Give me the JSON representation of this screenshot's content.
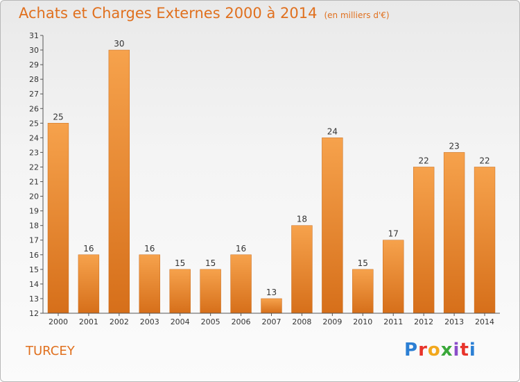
{
  "header": {
    "title": "Achats et Charges Externes 2000 à 2014",
    "subtitle": "(en milliers d'€)"
  },
  "footer": {
    "place": "TURCEY",
    "logo_text": "Proxiti",
    "logo_colors": [
      "#2b7fd4",
      "#e8332a",
      "#f2a81d",
      "#3aa83a",
      "#8a4ec9",
      "#e8332a",
      "#2b7fd4"
    ]
  },
  "colors": {
    "bar_light": "#f6a24c",
    "bar_dark": "#d66f1a",
    "axis": "#555555",
    "title": "#e0701e"
  },
  "chart_data": {
    "type": "bar",
    "title": "Achats et Charges Externes 2000 à 2014",
    "subtitle": "(en milliers d'€)",
    "xlabel": "",
    "ylabel": "",
    "categories": [
      "2000",
      "2001",
      "2002",
      "2003",
      "2004",
      "2005",
      "2006",
      "2007",
      "2008",
      "2009",
      "2010",
      "2011",
      "2012",
      "2013",
      "2014"
    ],
    "values": [
      25,
      16,
      30,
      16,
      15,
      15,
      16,
      13,
      18,
      24,
      15,
      17,
      22,
      23,
      22
    ],
    "ylim": [
      12,
      31
    ],
    "yticks": [
      12,
      13,
      14,
      15,
      16,
      17,
      18,
      19,
      20,
      21,
      22,
      23,
      24,
      25,
      26,
      27,
      28,
      29,
      30,
      31
    ],
    "grid": false,
    "legend": "none"
  }
}
